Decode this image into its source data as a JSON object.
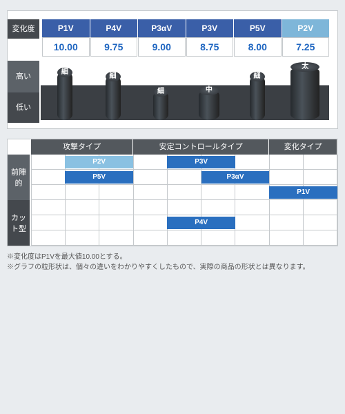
{
  "top": {
    "side_change": "変化度",
    "side_high": "高い",
    "side_low": "低い",
    "columns": [
      {
        "name": "P1V",
        "value": "10.00",
        "alt": false,
        "cyl_w": 22,
        "cyl_h": 70,
        "cyl_label": "細"
      },
      {
        "name": "P4V",
        "value": "9.75",
        "alt": false,
        "cyl_w": 22,
        "cyl_h": 64,
        "cyl_label": "細"
      },
      {
        "name": "P3αV",
        "value": "9.00",
        "alt": false,
        "cyl_w": 22,
        "cyl_h": 42,
        "cyl_label": "細"
      },
      {
        "name": "P3V",
        "value": "8.75",
        "alt": false,
        "cyl_w": 30,
        "cyl_h": 44,
        "cyl_label": "中"
      },
      {
        "name": "P5V",
        "value": "8.00",
        "alt": false,
        "cyl_w": 22,
        "cyl_h": 64,
        "cyl_label": "細"
      },
      {
        "name": "P2V",
        "value": "7.25",
        "alt": true,
        "cyl_w": 42,
        "cyl_h": 78,
        "cyl_label": "太"
      }
    ],
    "bg_white": "#ffffff",
    "bg_dark_stage": "#3b3f44",
    "header_blue": "#3a5fa8",
    "header_alt": "#7eb6d9",
    "value_color": "#1f66c1"
  },
  "grid": {
    "n_rows": 6,
    "n_cols": 9,
    "type_headers": [
      {
        "label": "攻撃タイプ",
        "span": 3
      },
      {
        "label": "安定コントロールタイプ",
        "span": 4
      },
      {
        "label": "変化タイプ",
        "span": 2
      }
    ],
    "v_front": "前陣的",
    "v_cut": "カット型",
    "v_front_rows": 3,
    "v_cut_rows": 3,
    "badges": [
      {
        "label": "P2V",
        "row": 0,
        "col_start": 1,
        "col_span": 2,
        "alt": true
      },
      {
        "label": "P5V",
        "row": 1,
        "col_start": 1,
        "col_span": 2,
        "alt": false
      },
      {
        "label": "P3V",
        "row": 0,
        "col_start": 4,
        "col_span": 2,
        "alt": false
      },
      {
        "label": "P3αV",
        "row": 1,
        "col_start": 5,
        "col_span": 2,
        "alt": false
      },
      {
        "label": "P1V",
        "row": 2,
        "col_start": 7,
        "col_span": 2,
        "alt": false
      },
      {
        "label": "P4V",
        "row": 4,
        "col_start": 4,
        "col_span": 2,
        "alt": false
      }
    ],
    "badge_blue": "#2a6fbf",
    "badge_alt": "#8ac1e2",
    "grid_border": "#c5c9cc"
  },
  "notes": {
    "line1": "※変化度はP1Vを最大値10.00とする。",
    "line2": "※グラフの粒形状は、個々の違いをわかりやすくしたもので、実際の商品の形状とは異なります。"
  }
}
